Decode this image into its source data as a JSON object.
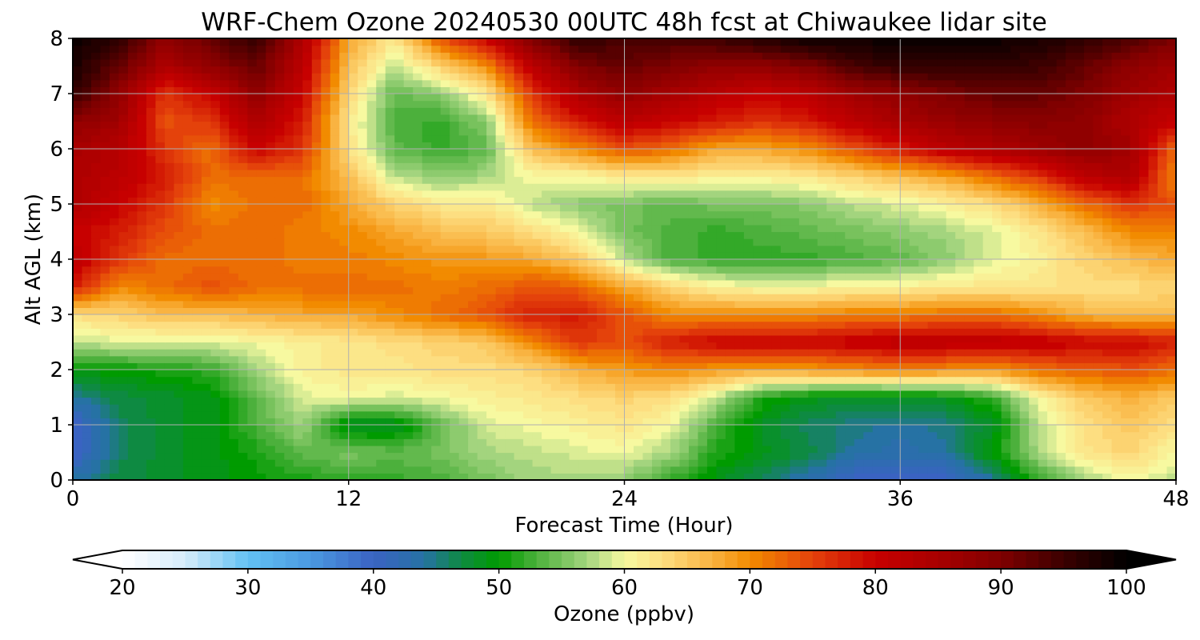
{
  "chart_data": {
    "type": "heatmap",
    "title": "WRF-Chem Ozone  20240530 00UTC 48h fcst at Chiwaukee lidar site",
    "xlabel": "Forecast Time (Hour)",
    "ylabel": "Alt AGL (km)",
    "xlim": [
      0,
      48
    ],
    "ylim": [
      0,
      8
    ],
    "xticks": [
      "0",
      "12",
      "24",
      "36",
      "48"
    ],
    "yticks": [
      "0",
      "1",
      "2",
      "3",
      "4",
      "5",
      "6",
      "7",
      "8"
    ],
    "grid": true,
    "colorbar": {
      "label": "Ozone  (ppbv)",
      "range": [
        20,
        100
      ],
      "ticks": [
        "20",
        "30",
        "40",
        "50",
        "60",
        "70",
        "80",
        "90",
        "100"
      ],
      "extend": "both",
      "under_color": "#ffffff",
      "over_color": "#000000",
      "stops": [
        {
          "v": 20,
          "c": "#ffffff"
        },
        {
          "v": 25,
          "c": "#d6ecfa"
        },
        {
          "v": 30,
          "c": "#62c1f3"
        },
        {
          "v": 35,
          "c": "#4b99e1"
        },
        {
          "v": 40,
          "c": "#3a63c2"
        },
        {
          "v": 44,
          "c": "#2672a4"
        },
        {
          "v": 47,
          "c": "#0e8a42"
        },
        {
          "v": 50,
          "c": "#009b00"
        },
        {
          "v": 53,
          "c": "#4cb03c"
        },
        {
          "v": 57,
          "c": "#a3d47e"
        },
        {
          "v": 60,
          "c": "#f7f9a0"
        },
        {
          "v": 63,
          "c": "#fdde81"
        },
        {
          "v": 67,
          "c": "#f9b341"
        },
        {
          "v": 70,
          "c": "#f28b00"
        },
        {
          "v": 75,
          "c": "#e4420b"
        },
        {
          "v": 80,
          "c": "#c70000"
        },
        {
          "v": 85,
          "c": "#a80000"
        },
        {
          "v": 90,
          "c": "#800000"
        },
        {
          "v": 95,
          "c": "#3b0000"
        },
        {
          "v": 100,
          "c": "#000000"
        }
      ]
    },
    "x": [
      0,
      2,
      4,
      6,
      8,
      10,
      12,
      14,
      16,
      18,
      20,
      22,
      24,
      26,
      28,
      30,
      32,
      34,
      36,
      38,
      40,
      42,
      44,
      46,
      48
    ],
    "y": [
      0,
      0.5,
      1,
      1.5,
      2,
      2.5,
      3,
      3.5,
      4,
      4.5,
      5,
      5.5,
      6,
      6.5,
      7,
      7.5,
      8
    ],
    "z": [
      [
        44,
        47,
        48,
        49,
        50,
        51,
        52,
        52,
        53,
        55,
        57,
        57,
        56,
        52,
        49,
        46,
        43,
        40,
        39,
        40,
        44,
        52,
        57,
        60,
        58
      ],
      [
        39,
        46,
        48,
        49,
        51,
        54,
        55,
        54,
        55,
        57,
        58,
        59,
        60,
        57,
        51,
        49,
        47,
        44,
        43,
        44,
        50,
        57,
        62,
        64,
        60
      ],
      [
        39,
        46,
        48,
        49,
        53,
        57,
        48,
        48,
        54,
        59,
        60,
        61,
        62,
        60,
        53,
        48,
        46,
        45,
        44,
        45,
        48,
        58,
        63,
        65,
        63
      ],
      [
        44,
        47,
        48,
        49,
        54,
        59,
        60,
        59,
        60,
        61,
        62,
        63,
        64,
        63,
        58,
        51,
        49,
        48,
        48,
        49,
        52,
        60,
        65,
        67,
        65
      ],
      [
        50,
        50,
        51,
        52,
        57,
        61,
        62,
        62,
        63,
        63,
        64,
        67,
        69,
        70,
        69,
        68,
        69,
        70,
        71,
        70,
        69,
        72,
        73,
        74,
        72
      ],
      [
        58,
        59,
        59,
        59,
        60,
        61,
        62,
        63,
        64,
        65,
        70,
        76,
        74,
        78,
        80,
        80,
        80,
        81,
        82,
        82,
        82,
        81,
        80,
        80,
        78
      ],
      [
        63,
        64,
        66,
        66,
        67,
        68,
        68,
        70,
        72,
        74,
        78,
        78,
        74,
        70,
        70,
        70,
        70,
        71,
        71,
        72,
        72,
        70,
        67,
        66,
        66
      ],
      [
        78,
        70,
        72,
        74,
        72,
        72,
        72,
        72,
        71,
        72,
        74,
        73,
        68,
        64,
        61,
        60,
        60,
        61,
        61,
        62,
        62,
        62,
        63,
        63,
        64
      ],
      [
        82,
        76,
        72,
        72,
        72,
        71,
        71,
        70,
        69,
        69,
        68,
        65,
        58,
        53,
        52,
        52,
        52,
        53,
        54,
        56,
        59,
        61,
        64,
        66,
        68
      ],
      [
        80,
        78,
        74,
        72,
        72,
        71,
        70,
        68,
        66,
        65,
        63,
        60,
        55,
        53,
        52,
        53,
        54,
        55,
        56,
        57,
        59,
        62,
        66,
        70,
        70
      ],
      [
        84,
        80,
        76,
        70,
        72,
        72,
        68,
        64,
        62,
        62,
        58,
        56,
        55,
        54,
        55,
        55,
        56,
        58,
        59,
        61,
        63,
        67,
        72,
        76,
        74
      ],
      [
        84,
        82,
        78,
        72,
        72,
        72,
        66,
        58,
        56,
        57,
        60,
        60,
        62,
        62,
        61,
        61,
        62,
        64,
        66,
        68,
        72,
        76,
        82,
        84,
        70
      ],
      [
        85,
        83,
        76,
        72,
        80,
        76,
        63,
        54,
        52,
        54,
        66,
        70,
        74,
        72,
        68,
        68,
        70,
        74,
        78,
        82,
        84,
        86,
        88,
        86,
        72
      ],
      [
        88,
        86,
        74,
        76,
        84,
        78,
        62,
        53,
        52,
        56,
        72,
        78,
        82,
        80,
        78,
        76,
        78,
        82,
        85,
        87,
        88,
        89,
        88,
        84,
        80
      ],
      [
        96,
        88,
        76,
        80,
        88,
        80,
        64,
        54,
        56,
        62,
        76,
        84,
        88,
        85,
        82,
        80,
        82,
        86,
        88,
        90,
        92,
        92,
        90,
        86,
        84
      ],
      [
        98,
        92,
        84,
        88,
        92,
        82,
        66,
        58,
        64,
        70,
        82,
        90,
        92,
        90,
        88,
        88,
        90,
        94,
        96,
        96,
        96,
        95,
        92,
        88,
        86
      ],
      [
        99,
        96,
        88,
        92,
        96,
        84,
        68,
        62,
        74,
        80,
        90,
        96,
        94,
        94,
        95,
        97,
        99,
        99,
        99,
        99,
        99,
        98,
        96,
        94,
        90
      ]
    ]
  }
}
